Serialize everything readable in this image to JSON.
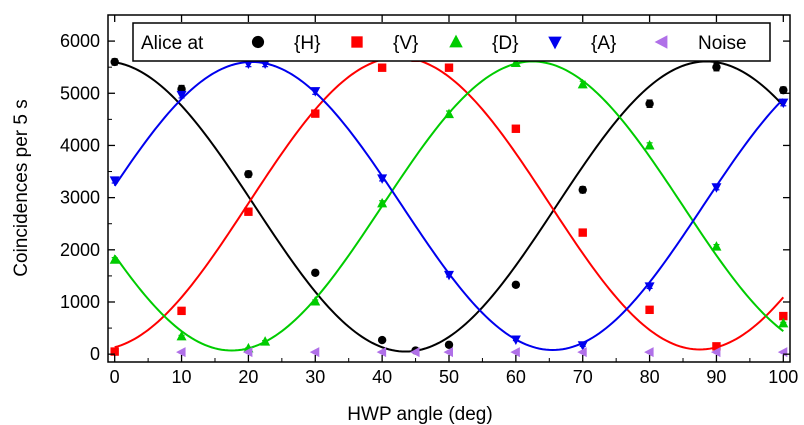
{
  "chart_data": {
    "type": "scatter",
    "xlabel": "HWP angle (deg)",
    "ylabel": "Coincidences per 5 s",
    "xlim": [
      -1,
      101
    ],
    "ylim": [
      -150,
      6500
    ],
    "xticks": [
      0,
      10,
      20,
      30,
      40,
      50,
      60,
      70,
      80,
      90,
      100
    ],
    "yticks": [
      0,
      1000,
      2000,
      3000,
      4000,
      5000,
      6000
    ],
    "grid": false,
    "legend_position": "top",
    "legend_title": "Alice at",
    "series": [
      {
        "name": "{H}",
        "color": "#000000",
        "marker": "circle",
        "x": [
          0,
          10,
          20,
          30,
          40,
          45,
          50,
          60,
          70,
          80,
          90,
          100
        ],
        "y": [
          5600,
          5080,
          3450,
          1560,
          270,
          70,
          180,
          1330,
          3150,
          4800,
          5500,
          5060
        ],
        "err": [
          60,
          70,
          60,
          40,
          20,
          10,
          20,
          40,
          60,
          70,
          70,
          60
        ],
        "fit": {
          "A": 2780,
          "B": 2830,
          "k": 4,
          "phase": -1.5
        }
      },
      {
        "name": "{V}",
        "color": "#ff0000",
        "marker": "square",
        "x": [
          0,
          10,
          20,
          30,
          40,
          45,
          50,
          60,
          70,
          80,
          90,
          100
        ],
        "y": [
          50,
          830,
          2730,
          4610,
          5490,
          5680,
          5490,
          4320,
          2330,
          850,
          150,
          730
        ],
        "err": [
          10,
          30,
          50,
          60,
          60,
          60,
          60,
          60,
          50,
          30,
          15,
          30
        ],
        "fit": {
          "A": -2800,
          "B": 2890,
          "k": 4,
          "phase": -2.5
        }
      },
      {
        "name": "{D}",
        "color": "#00cc00",
        "marker": "triangle-up",
        "x": [
          0,
          10,
          20,
          22.5,
          30,
          40,
          50,
          60,
          70,
          80,
          90,
          100
        ],
        "y": [
          1810,
          340,
          110,
          240,
          1010,
          2890,
          4600,
          5580,
          5170,
          4000,
          2060,
          590
        ],
        "err": [
          40,
          20,
          15,
          20,
          30,
          50,
          60,
          60,
          60,
          50,
          40,
          20
        ],
        "fit": {
          "A": -2770,
          "B": 2840,
          "k": 4,
          "phase": 17.5
        }
      },
      {
        "name": "{A}",
        "color": "#0000ee",
        "marker": "triangle-down",
        "x": [
          0,
          10,
          20,
          22.5,
          30,
          40,
          50,
          60,
          70,
          80,
          90,
          100
        ],
        "y": [
          3330,
          4970,
          5570,
          5570,
          5040,
          3370,
          1520,
          280,
          170,
          1300,
          3200,
          4820
        ],
        "err": [
          50,
          60,
          60,
          60,
          60,
          50,
          40,
          20,
          20,
          40,
          50,
          60
        ],
        "fit": {
          "A": 2760,
          "B": 2840,
          "k": 4,
          "phase": 20.5
        }
      },
      {
        "name": "Noise",
        "color": "#b070e8",
        "marker": "triangle-left",
        "x": [
          10,
          20,
          30,
          40,
          45,
          50,
          60,
          70,
          80,
          90,
          100
        ],
        "y": [
          40,
          40,
          40,
          40,
          40,
          40,
          40,
          40,
          40,
          40,
          40
        ],
        "err": [],
        "fit": null
      }
    ]
  }
}
